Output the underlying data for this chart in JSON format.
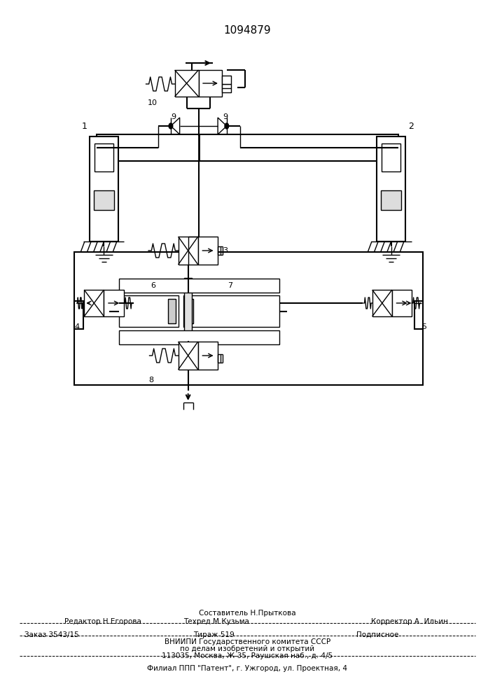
{
  "title": "1094879",
  "bg_color": "#ffffff",
  "footer": {
    "line1_left": "Редактор Н.Егорова",
    "line1_center": "Составитель Н.Прыткова",
    "line1_center2": "Техред М.Кузьма",
    "line1_right": "Корректор А. Ильин",
    "line2_left": "Заказ 3543/15",
    "line2_center": "Тираж 519",
    "line2_right": "Подписное",
    "line3": "ВНИИПИ Государственного комитета СССР",
    "line4": "по делам изобретений и открытий",
    "line5": "113035, Москва, Ж-35, Раушская наб., д. 4/5",
    "line6": "Филиал ППП \"Патент\", г. Ужгород, ул. Проектная, 4"
  }
}
